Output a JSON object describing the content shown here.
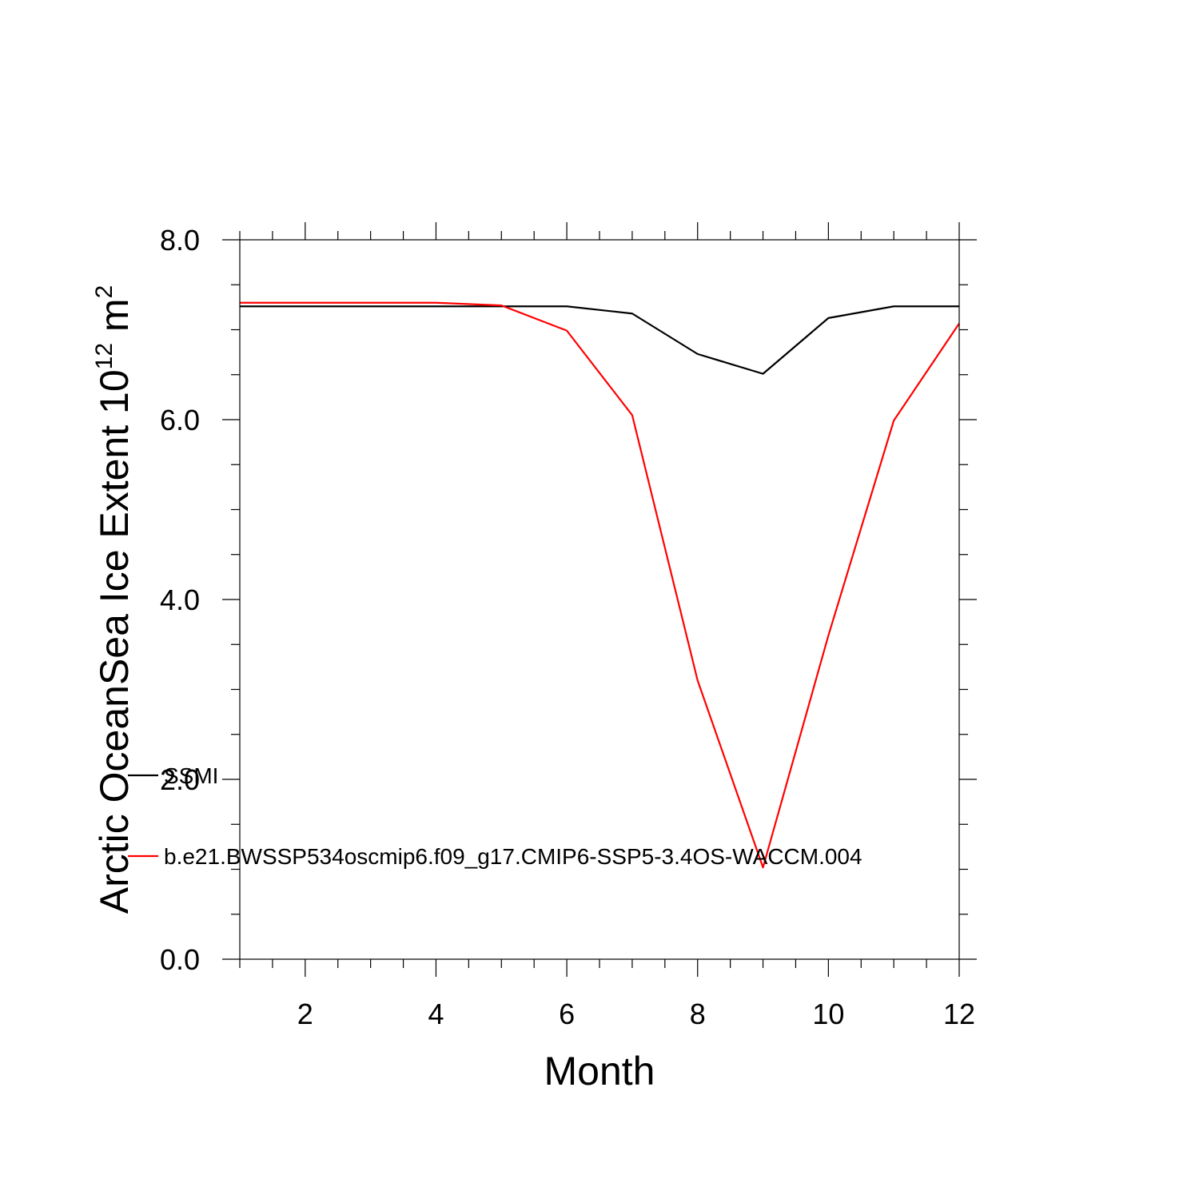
{
  "chart_data": {
    "type": "line",
    "xlabel": "Month",
    "ylabel": "Arctic OceanSea Ice Extent 10",
    "ylabel_sup1": "12",
    "ylabel_unit": " m",
    "ylabel_sup2": "2",
    "xlim": [
      1,
      12
    ],
    "ylim": [
      0,
      8
    ],
    "x_major_ticks": [
      2,
      4,
      6,
      8,
      10,
      12
    ],
    "x_tick_labels": [
      "2",
      "4",
      "6",
      "8",
      "10",
      "12"
    ],
    "y_major_ticks": [
      0,
      2,
      4,
      6,
      8
    ],
    "y_tick_labels": [
      "0.0",
      "2.0",
      "4.0",
      "6.0",
      "8.0"
    ],
    "x": [
      1,
      2,
      3,
      4,
      5,
      6,
      7,
      8,
      9,
      10,
      11,
      12
    ],
    "series": [
      {
        "name": "SSMI",
        "color": "#000000",
        "values": [
          7.26,
          7.26,
          7.26,
          7.26,
          7.26,
          7.26,
          7.18,
          6.73,
          6.51,
          7.13,
          7.26,
          7.26
        ]
      },
      {
        "name": "b.e21.BWSSP534oscmip6.f09_g17.CMIP6-SSP5-3.4OS-WACCM.004",
        "color": "#ff0000",
        "values": [
          7.3,
          7.3,
          7.3,
          7.3,
          7.27,
          6.99,
          6.05,
          3.1,
          1.02,
          3.6,
          5.99,
          7.07
        ]
      }
    ],
    "grid": false,
    "legend_position": "lower-left"
  }
}
